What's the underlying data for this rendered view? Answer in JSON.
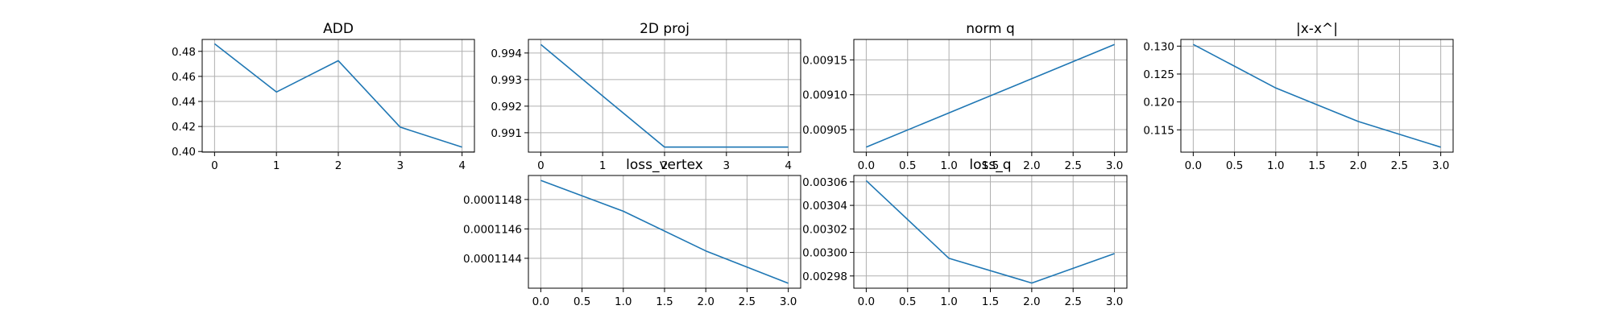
{
  "line_color": "#1f77b4",
  "chart_data": [
    {
      "type": "line",
      "title": "ADD",
      "x": [
        0,
        1,
        2,
        3,
        4
      ],
      "series": [
        {
          "values": [
            0.486,
            0.4475,
            0.4725,
            0.4195,
            0.4035
          ]
        }
      ],
      "xlim": [
        -0.2,
        4.2
      ],
      "ylim": [
        0.3995,
        0.4895
      ],
      "xticks": [
        0,
        1,
        2,
        3,
        4
      ],
      "xtick_labels": [
        "0",
        "1",
        "2",
        "3",
        "4"
      ],
      "yticks": [
        0.4,
        0.42,
        0.44,
        0.46,
        0.48
      ],
      "ytick_labels": [
        "0.40",
        "0.42",
        "0.44",
        "0.46",
        "0.48"
      ],
      "grid": true
    },
    {
      "type": "line",
      "title": "2D proj",
      "x": [
        0,
        1,
        2,
        3,
        4
      ],
      "series": [
        {
          "values": [
            0.99432,
            0.99238,
            0.99046,
            0.99046,
            0.99046
          ]
        }
      ],
      "xlim": [
        -0.2,
        4.2
      ],
      "ylim": [
        0.99027,
        0.99451
      ],
      "xticks": [
        0,
        1,
        2,
        3,
        4
      ],
      "xtick_labels": [
        "0",
        "1",
        "2",
        "3",
        "4"
      ],
      "yticks": [
        0.991,
        0.992,
        0.993,
        0.994
      ],
      "ytick_labels": [
        "0.991",
        "0.992",
        "0.993",
        "0.994"
      ],
      "grid": true
    },
    {
      "type": "line",
      "title": "norm q",
      "x": [
        0,
        1,
        2,
        3
      ],
      "series": [
        {
          "values": [
            0.009025,
            0.009074,
            0.009123,
            0.009172
          ]
        }
      ],
      "xlim": [
        -0.15,
        3.15
      ],
      "ylim": [
        0.0090177,
        0.0091793
      ],
      "xticks": [
        0,
        0.5,
        1,
        1.5,
        2,
        2.5,
        3
      ],
      "xtick_labels": [
        "0.0",
        "0.5",
        "1.0",
        "1.5",
        "2.0",
        "2.5",
        "3.0"
      ],
      "yticks": [
        0.00905,
        0.0091,
        0.00915
      ],
      "ytick_labels": [
        "0.00905",
        "0.00910",
        "0.00915"
      ],
      "grid": true
    },
    {
      "type": "line",
      "title": "|x-x^|",
      "x": [
        0,
        1,
        2,
        3
      ],
      "series": [
        {
          "values": [
            0.1303,
            0.1225,
            0.1165,
            0.1119
          ]
        }
      ],
      "xlim": [
        -0.15,
        3.15
      ],
      "ylim": [
        0.111,
        0.1312
      ],
      "xticks": [
        0,
        0.5,
        1,
        1.5,
        2,
        2.5,
        3
      ],
      "xtick_labels": [
        "0.0",
        "0.5",
        "1.0",
        "1.5",
        "2.0",
        "2.5",
        "3.0"
      ],
      "yticks": [
        0.115,
        0.12,
        0.125,
        0.13
      ],
      "ytick_labels": [
        "0.115",
        "0.120",
        "0.125",
        "0.130"
      ],
      "grid": true
    },
    {
      "type": "line",
      "title": "loss_vertex",
      "x": [
        0,
        1,
        2,
        3
      ],
      "series": [
        {
          "values": [
            0.00011493,
            0.00011472,
            0.00011445,
            0.00011423
          ]
        }
      ],
      "xlim": [
        -0.15,
        3.15
      ],
      "ylim": [
        0.0001141965,
        0.0001149635
      ],
      "xticks": [
        0,
        0.5,
        1,
        1.5,
        2,
        2.5,
        3
      ],
      "xtick_labels": [
        "0.0",
        "0.5",
        "1.0",
        "1.5",
        "2.0",
        "2.5",
        "3.0"
      ],
      "yticks": [
        0.0001144,
        0.0001146,
        0.0001148
      ],
      "ytick_labels": [
        "0.0001144",
        "0.0001146",
        "0.0001148"
      ],
      "grid": true
    },
    {
      "type": "line",
      "title": "loss_q",
      "x": [
        0,
        1,
        2,
        3
      ],
      "series": [
        {
          "values": [
            0.003061,
            0.002995,
            0.002974,
            0.002999
          ]
        }
      ],
      "xlim": [
        -0.15,
        3.15
      ],
      "ylim": [
        0.0029696,
        0.0030654
      ],
      "xticks": [
        0,
        0.5,
        1,
        1.5,
        2,
        2.5,
        3
      ],
      "xtick_labels": [
        "0.0",
        "0.5",
        "1.0",
        "1.5",
        "2.0",
        "2.5",
        "3.0"
      ],
      "yticks": [
        0.00298,
        0.003,
        0.00302,
        0.00304,
        0.00306
      ],
      "ytick_labels": [
        "0.00298",
        "0.00300",
        "0.00302",
        "0.00304",
        "0.00306"
      ],
      "grid": true
    }
  ]
}
